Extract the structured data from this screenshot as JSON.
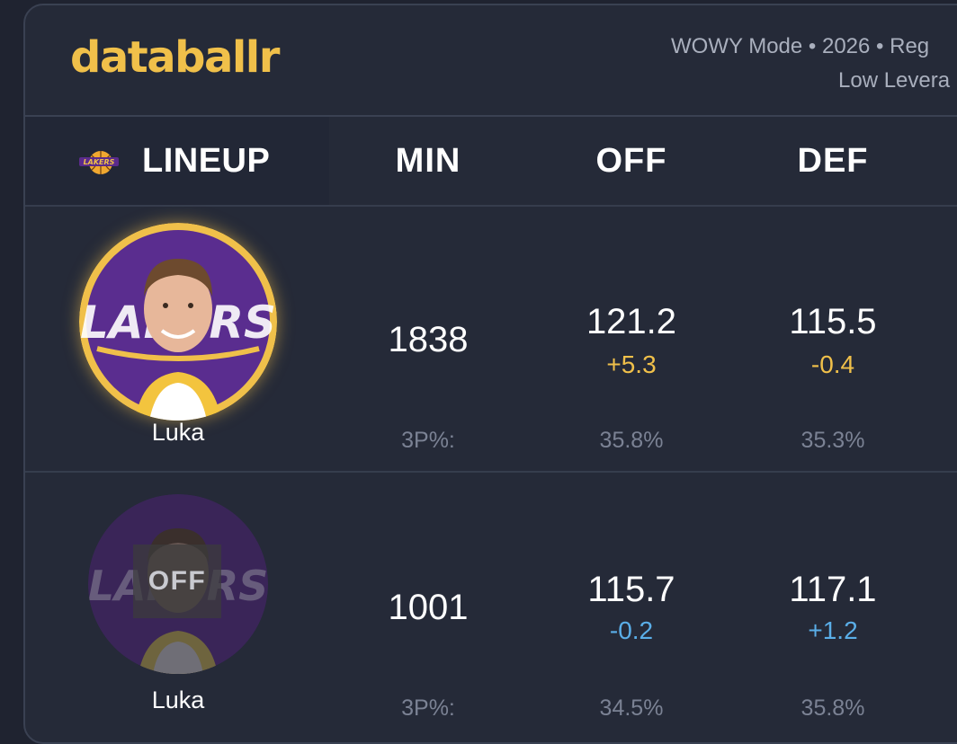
{
  "header": {
    "logo": "databallr",
    "mode_line": "WOWY Mode • 2026 • Reg",
    "leverage_line": "Low Levera"
  },
  "columns": {
    "lineup": "LINEUP",
    "min": "MIN",
    "off": "OFF",
    "def": "DEF"
  },
  "team_icon": "lakers-logo-icon",
  "colors": {
    "brand": "#f0c04a",
    "positive_diff_on": "#f0c04a",
    "diff_off": "#5aaee8",
    "muted": "#7b8294"
  },
  "rows": [
    {
      "player": "Luka",
      "status": "on",
      "min": "1838",
      "off": "121.2",
      "off_diff": "+5.3",
      "def": "115.5",
      "def_diff": "-0.4",
      "sub_label": "3P%:",
      "off_3p": "35.8%",
      "def_3p": "35.3%"
    },
    {
      "player": "Luka",
      "status": "off",
      "badge": "OFF",
      "min": "1001",
      "off": "115.7",
      "off_diff": "-0.2",
      "def": "117.1",
      "def_diff": "+1.2",
      "sub_label": "3P%:",
      "off_3p": "34.5%",
      "def_3p": "35.8%"
    }
  ]
}
